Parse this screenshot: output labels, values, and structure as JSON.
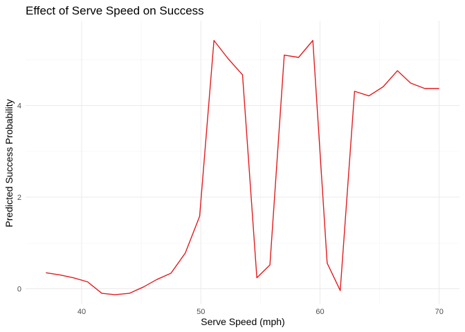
{
  "chart_data": {
    "type": "line",
    "title": "Effect of Serve Speed on Success",
    "xlabel": "Serve Speed (mph)",
    "ylabel": "Predicted Success Probability",
    "xlim": [
      35.3,
      71.7
    ],
    "ylim": [
      -0.34,
      5.85
    ],
    "x_ticks": [
      40,
      50,
      60,
      70
    ],
    "y_ticks": [
      0,
      2,
      4
    ],
    "x_minor_ticks": [
      45,
      55,
      65
    ],
    "y_minor_ticks": [
      1,
      3,
      5
    ],
    "grid": true,
    "legend": "none",
    "series": [
      {
        "color": "#e41a1c",
        "x": [
          37.0,
          38.2,
          39.3,
          40.5,
          41.7,
          42.8,
          44.0,
          45.2,
          46.3,
          47.5,
          48.7,
          49.9,
          51.1,
          52.3,
          53.5,
          54.7,
          55.8,
          57.0,
          58.2,
          59.4,
          60.6,
          61.7,
          62.9,
          64.1,
          65.3,
          66.5,
          67.6,
          68.8,
          70.0
        ],
        "y": [
          0.35,
          0.3,
          0.24,
          0.15,
          -0.1,
          -0.13,
          -0.1,
          0.04,
          0.2,
          0.34,
          0.78,
          1.58,
          5.42,
          5.02,
          4.67,
          0.24,
          0.52,
          5.1,
          5.05,
          5.42,
          0.56,
          -0.04,
          4.31,
          4.21,
          4.41,
          4.76,
          4.49,
          4.37,
          4.37
        ]
      }
    ]
  }
}
